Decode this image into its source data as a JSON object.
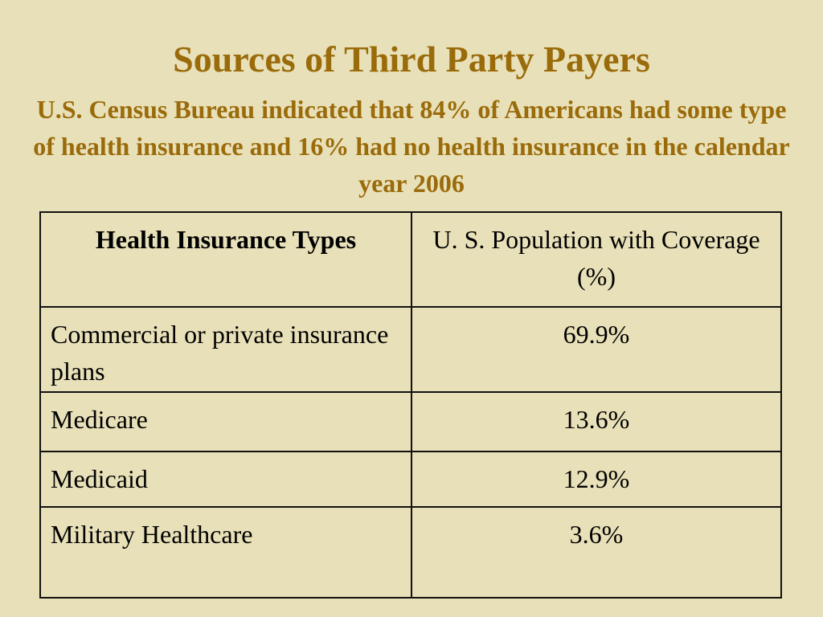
{
  "slide": {
    "title": "Sources of Third Party Payers",
    "subtitle": "U.S. Census Bureau indicated that 84% of Americans had some type of health insurance  and 16% had no health insurance in the calendar year 2006"
  },
  "table": {
    "headers": [
      "Health Insurance Types",
      "U. S. Population with Coverage (%)"
    ],
    "rows": [
      {
        "type": "Commercial or private insurance plans",
        "coverage": "69.9%"
      },
      {
        "type": "Medicare",
        "coverage": "13.6%"
      },
      {
        "type": "Medicaid",
        "coverage": "12.9%"
      },
      {
        "type": "Military Healthcare",
        "coverage": " 3.6%"
      }
    ]
  },
  "colors": {
    "background": "#e8e0b8",
    "heading": "#9a6b0a",
    "text": "#000000"
  }
}
